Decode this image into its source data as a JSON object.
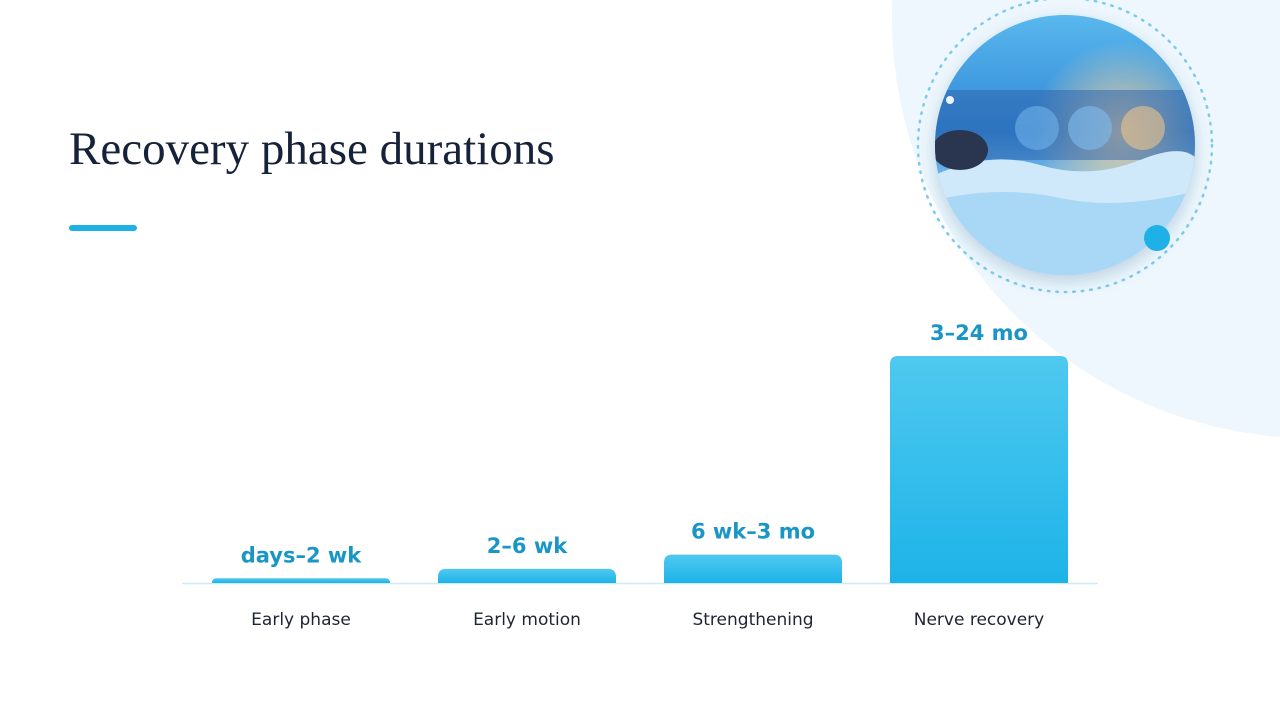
{
  "chart_data": {
    "type": "bar",
    "title": "Recovery phase durations",
    "categories": [
      "Early phase",
      "Early motion",
      "Strengthening",
      "Nerve recovery"
    ],
    "values": [
      0.5,
      1.5,
      3,
      24
    ],
    "value_labels": [
      "days–2 wk",
      "2–6 wk",
      "6 wk–3 mo",
      "3–24 mo"
    ],
    "ylim": [
      0,
      24
    ],
    "color": "#1db3e8"
  }
}
